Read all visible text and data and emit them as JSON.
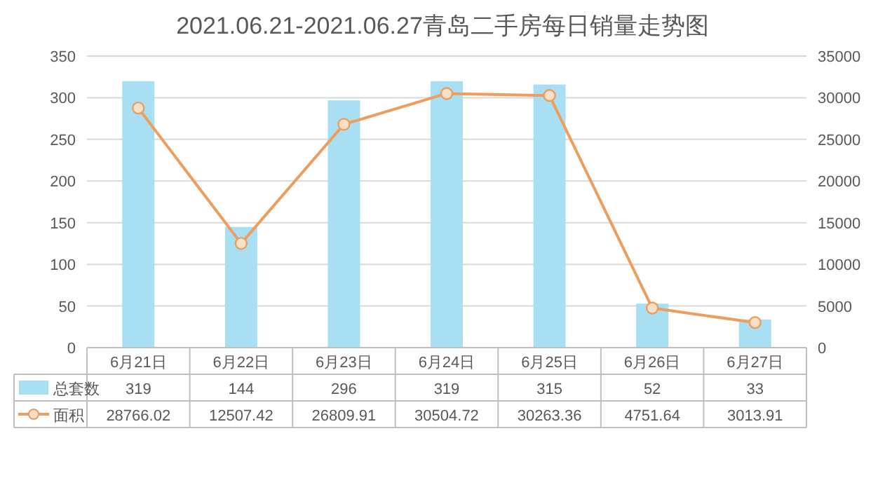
{
  "chart_data": {
    "type": "bar",
    "title": "2021.06.21-2021.06.27青岛二手房每日销量走势图",
    "categories": [
      "6月21日",
      "6月22日",
      "6月23日",
      "6月24日",
      "6月25日",
      "6月26日",
      "6月27日"
    ],
    "series": [
      {
        "name": "总套数",
        "color": "#a9dff2",
        "values": [
          319,
          144,
          296,
          319,
          315,
          52,
          33
        ]
      },
      {
        "name": "面积",
        "type": "line",
        "axis": "y2",
        "marker": "circle",
        "color": "#ed9d5e",
        "values": [
          28766.02,
          12507.42,
          26809.91,
          30504.72,
          30263.36,
          4751.64,
          3013.91
        ]
      }
    ],
    "ylim": [
      0,
      350
    ],
    "yticks": [
      0,
      50,
      100,
      150,
      200,
      250,
      300,
      350
    ],
    "y2lim": [
      0,
      35000
    ],
    "y2ticks": [
      0,
      5000,
      10000,
      15000,
      20000,
      25000,
      30000,
      35000
    ],
    "grid": "y",
    "legend": "bottom left",
    "data_labels": true
  }
}
